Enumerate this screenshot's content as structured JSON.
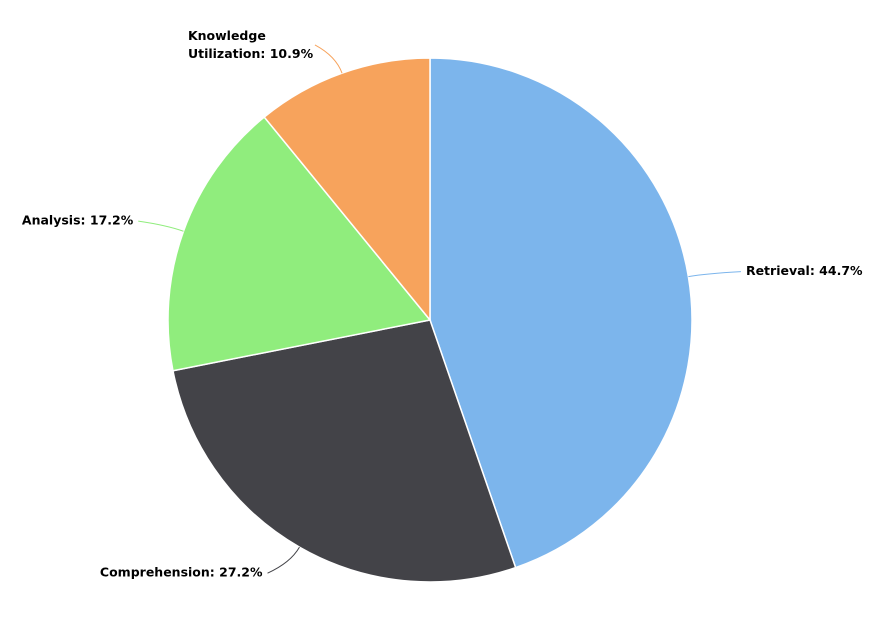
{
  "chart_data": {
    "type": "pie",
    "values": [
      44.7,
      27.2,
      17.2,
      10.9
    ],
    "value_labels": [
      "Retrieval: 44.7%",
      "Comprehension: 27.2%",
      "Analysis: 17.2%",
      "Knowledge Utilization: 10.9%"
    ],
    "colors": [
      "#7cb5ec",
      "#434348",
      "#90ed7d",
      "#f7a35c"
    ]
  }
}
